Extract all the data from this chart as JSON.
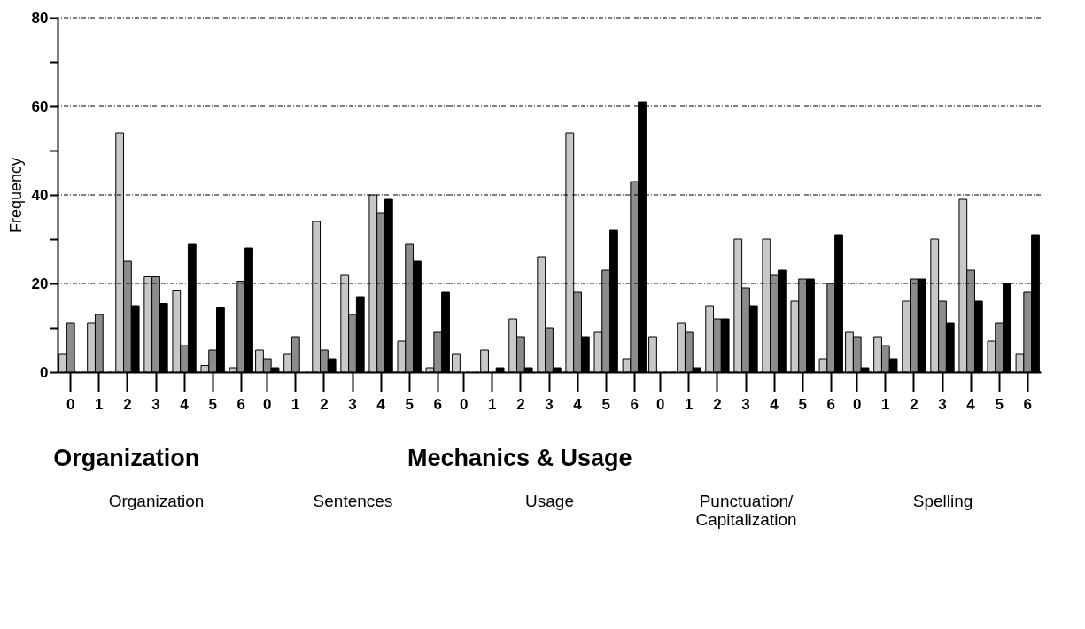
{
  "chart_data": [
    {
      "type": "bar",
      "xlabel": "Organization",
      "ylabel": "Frequency",
      "categories": [
        "0",
        "1",
        "2",
        "3",
        "4",
        "5",
        "6"
      ],
      "annotations": [
        "Organization"
      ],
      "ylim": [
        0,
        80
      ],
      "yticks": [
        0,
        {
          "value": 10,
          "label": null
        },
        20,
        {
          "value": 30,
          "label": null
        },
        40,
        {
          "value": 50,
          "label": null
        },
        60,
        {
          "value": 70,
          "label": null
        },
        80
      ],
      "grid": "y",
      "legend": false,
      "series": [
        {
          "color": "#c8c8c8",
          "values": [
            4,
            11,
            54,
            21.5,
            18.5,
            1.5,
            1
          ]
        },
        {
          "color": "#8c8c8c",
          "values": [
            11,
            13,
            25,
            21.5,
            6,
            5,
            20.5
          ]
        },
        {
          "color": "#000000",
          "values": [
            null,
            null,
            15,
            15.5,
            29,
            14.5,
            28
          ]
        }
      ]
    },
    {
      "type": "bar",
      "xlabel": "Sentences",
      "categories": [
        "0",
        "1",
        "2",
        "3",
        "4",
        "5",
        "6"
      ],
      "ylim": [
        0,
        80
      ],
      "yticks": [
        0,
        20,
        40,
        60,
        80
      ],
      "grid": "y",
      "legend": false,
      "tick_labels": "x",
      "series": [
        {
          "color": "#c8c8c8",
          "values": [
            5,
            4,
            34,
            22,
            40,
            7,
            1
          ]
        },
        {
          "color": "#8c8c8c",
          "values": [
            3,
            8,
            5,
            13,
            36,
            29,
            9
          ]
        },
        {
          "color": "#000000",
          "values": [
            1,
            null,
            3,
            17,
            39,
            25,
            18
          ]
        }
      ]
    },
    {
      "type": "bar",
      "xlabel": "Usage",
      "categories": [
        "0",
        "1",
        "2",
        "3",
        "4",
        "5",
        "6"
      ],
      "annotations": [
        "Mechanics & Usage"
      ],
      "ylim": [
        0,
        80
      ],
      "yticks": [
        0,
        20,
        40,
        60,
        80
      ],
      "grid": "y",
      "legend": false,
      "tick_labels": "x",
      "series": [
        {
          "color": "#c8c8c8",
          "values": [
            4,
            5,
            12,
            26,
            54,
            9,
            3
          ]
        },
        {
          "color": "#8c8c8c",
          "values": [
            null,
            null,
            8,
            10,
            18,
            23,
            43
          ]
        },
        {
          "color": "#000000",
          "values": [
            null,
            1,
            1,
            1,
            8,
            32,
            61
          ]
        }
      ]
    },
    {
      "type": "bar",
      "xlabel": "Punctuation/ Capitalization",
      "categories": [
        "0",
        "1",
        "2",
        "3",
        "4",
        "5",
        "6"
      ],
      "ylim": [
        0,
        80
      ],
      "yticks": [
        0,
        20,
        40,
        60,
        80
      ],
      "grid": "y",
      "legend": false,
      "tick_labels": "x",
      "series": [
        {
          "color": "#c8c8c8",
          "values": [
            8,
            11,
            15,
            30,
            30,
            16,
            3
          ]
        },
        {
          "color": "#8c8c8c",
          "values": [
            null,
            9,
            12,
            19,
            22,
            21,
            20
          ]
        },
        {
          "color": "#000000",
          "values": [
            null,
            1,
            12,
            15,
            23,
            21,
            31
          ]
        }
      ]
    },
    {
      "type": "bar",
      "xlabel": "Spelling",
      "categories": [
        "0",
        "1",
        "2",
        "3",
        "4",
        "5",
        "6"
      ],
      "ylim": [
        0,
        80
      ],
      "yticks": [
        0,
        20,
        40,
        60,
        80
      ],
      "grid": "y",
      "legend": false,
      "tick_labels": "x",
      "series": [
        {
          "color": "#c8c8c8",
          "values": [
            9,
            8,
            16,
            30,
            39,
            7,
            4
          ]
        },
        {
          "color": "#8c8c8c",
          "values": [
            8,
            6,
            21,
            16,
            23,
            11,
            18
          ]
        },
        {
          "color": "#000000",
          "values": [
            1,
            3,
            21,
            11,
            16,
            20,
            31
          ]
        }
      ]
    }
  ]
}
